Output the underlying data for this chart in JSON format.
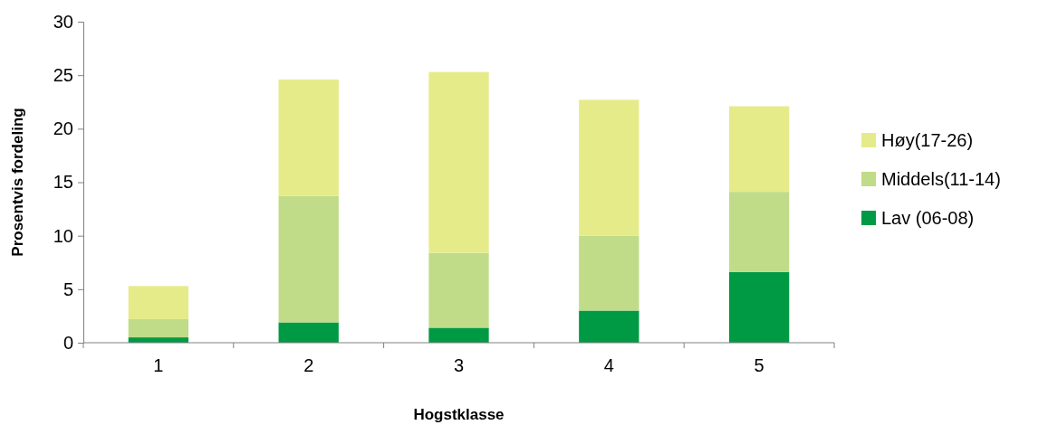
{
  "chart_data": {
    "type": "bar",
    "stacked": true,
    "xlabel": "Hogstklasse",
    "ylabel": "Prosentvis fordeling",
    "categories": [
      "1",
      "2",
      "3",
      "4",
      "5"
    ],
    "series": [
      {
        "name": "Lav (06-08)",
        "color": "#009a44",
        "values": [
          0.5,
          1.9,
          1.4,
          3.0,
          6.6
        ]
      },
      {
        "name": "Middels(11-14)",
        "color": "#c0dc88",
        "values": [
          1.7,
          11.8,
          7.0,
          7.0,
          7.5
        ]
      },
      {
        "name": "Høy(17-26)",
        "color": "#e6eb8a",
        "values": [
          3.1,
          10.9,
          16.9,
          12.7,
          8.0
        ]
      }
    ],
    "ylim": [
      0,
      30
    ],
    "yticks": [
      0,
      5,
      10,
      15,
      20,
      25,
      30
    ],
    "grid": false,
    "legend": "right"
  }
}
